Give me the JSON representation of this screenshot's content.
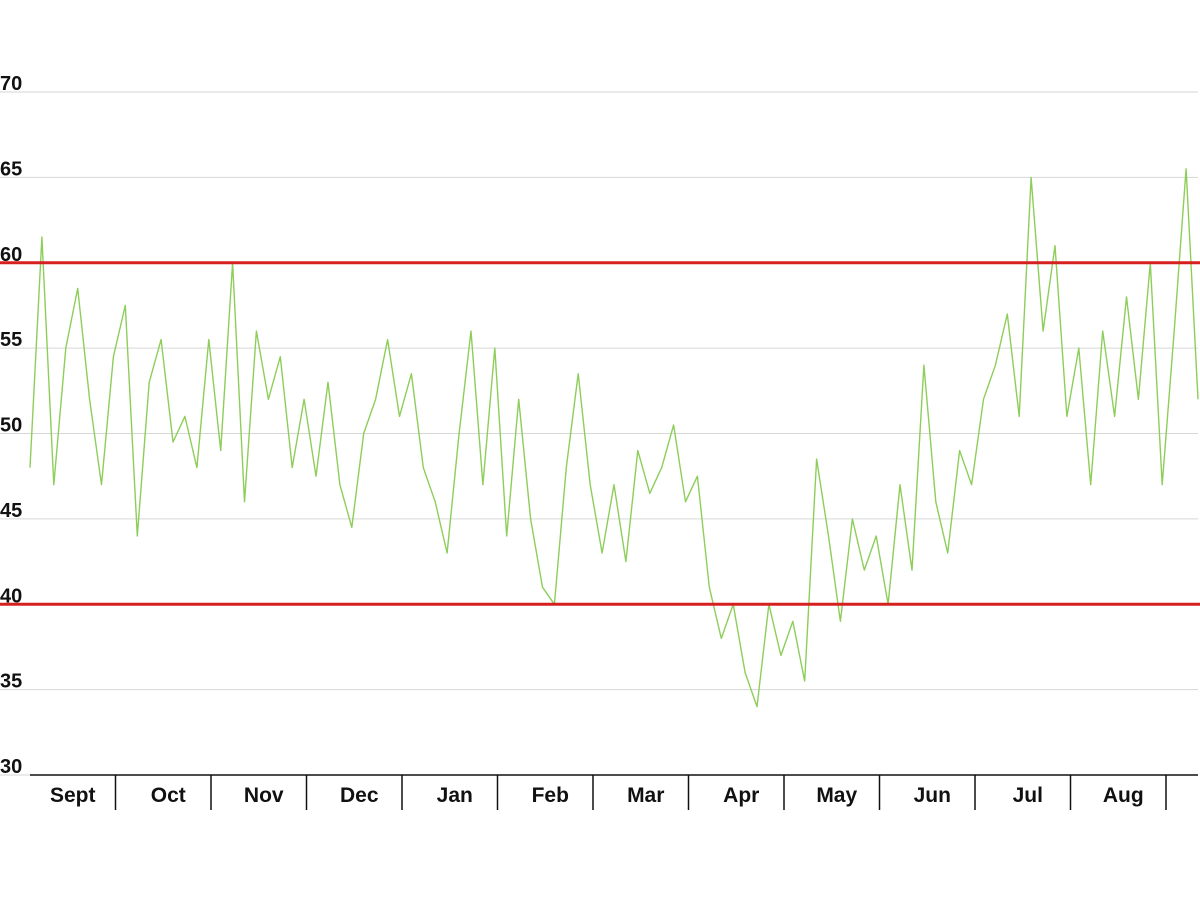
{
  "chart_data": {
    "type": "line",
    "title": "",
    "xlabel": "",
    "ylabel": "",
    "ylim": [
      30,
      70
    ],
    "y_ticks": [
      "70",
      "65",
      "60",
      "55",
      "50",
      "45",
      "40",
      "35",
      "30"
    ],
    "categories": [
      "Sept",
      "Oct",
      "Nov",
      "Dec",
      "Jan",
      "Feb",
      "Mar",
      "Apr",
      "May",
      "Jun",
      "Jul",
      "Aug"
    ],
    "grid": "horizontal",
    "legend": "none",
    "reference_lines": [
      {
        "value": 60,
        "color": "#d62020"
      },
      {
        "value": 40,
        "color": "#d62020"
      }
    ],
    "series": [
      {
        "color": "#8dce5a",
        "x": [
          "Sept",
          "Sept",
          "Sept",
          "Sept",
          "Sept",
          "Sept",
          "Sept",
          "Sept",
          "Sept",
          "Sept",
          "Oct",
          "Oct",
          "Oct",
          "Oct",
          "Oct",
          "Oct",
          "Oct",
          "Oct",
          "Nov",
          "Nov",
          "Nov",
          "Nov",
          "Nov",
          "Nov",
          "Nov",
          "Nov",
          "Dec",
          "Dec",
          "Dec",
          "Dec",
          "Dec",
          "Dec",
          "Dec",
          "Jan",
          "Jan",
          "Jan",
          "Jan",
          "Jan",
          "Jan",
          "Jan",
          "Jan",
          "Feb",
          "Feb",
          "Feb",
          "Feb",
          "Feb",
          "Feb",
          "Feb",
          "Feb",
          "Mar",
          "Mar",
          "Mar",
          "Mar",
          "Mar",
          "Mar",
          "Mar",
          "Mar",
          "Apr",
          "Apr",
          "Apr",
          "Apr",
          "Apr",
          "Apr",
          "Apr",
          "Apr",
          "May",
          "May",
          "May",
          "May",
          "May",
          "May",
          "May",
          "May",
          "Jun",
          "Jun",
          "Jun",
          "Jun",
          "Jun",
          "Jun",
          "Jun",
          "Jun",
          "Jul",
          "Jul",
          "Jul",
          "Jul",
          "Jul",
          "Jul",
          "Jul",
          "Jul",
          "Aug",
          "Aug",
          "Aug",
          "Aug",
          "Aug",
          "Aug",
          "Aug",
          "Aug",
          "Aug",
          "Aug"
        ],
        "values": [
          48,
          61.5,
          47,
          55,
          58.5,
          52,
          47,
          54.5,
          57.5,
          44,
          53,
          55.5,
          49.5,
          51,
          48,
          55.5,
          49,
          60,
          46,
          56,
          52,
          54.5,
          48,
          52,
          47.5,
          53,
          47,
          44.5,
          50,
          52,
          55.5,
          51,
          53.5,
          48,
          46,
          43,
          50,
          56,
          47,
          55,
          44,
          52,
          45,
          41,
          40,
          48,
          53.5,
          47,
          43,
          47,
          42.5,
          49,
          46.5,
          48,
          50.5,
          46,
          47.5,
          41,
          38,
          40,
          36,
          34,
          40,
          37,
          39,
          35.5,
          48.5,
          44,
          39,
          45,
          42,
          44,
          40,
          47,
          42,
          54,
          46,
          43,
          49,
          47,
          52,
          54,
          57,
          51,
          65,
          56,
          61,
          51,
          55,
          47,
          56,
          51,
          58,
          52,
          60,
          47,
          56,
          65.5,
          52
        ]
      }
    ]
  }
}
